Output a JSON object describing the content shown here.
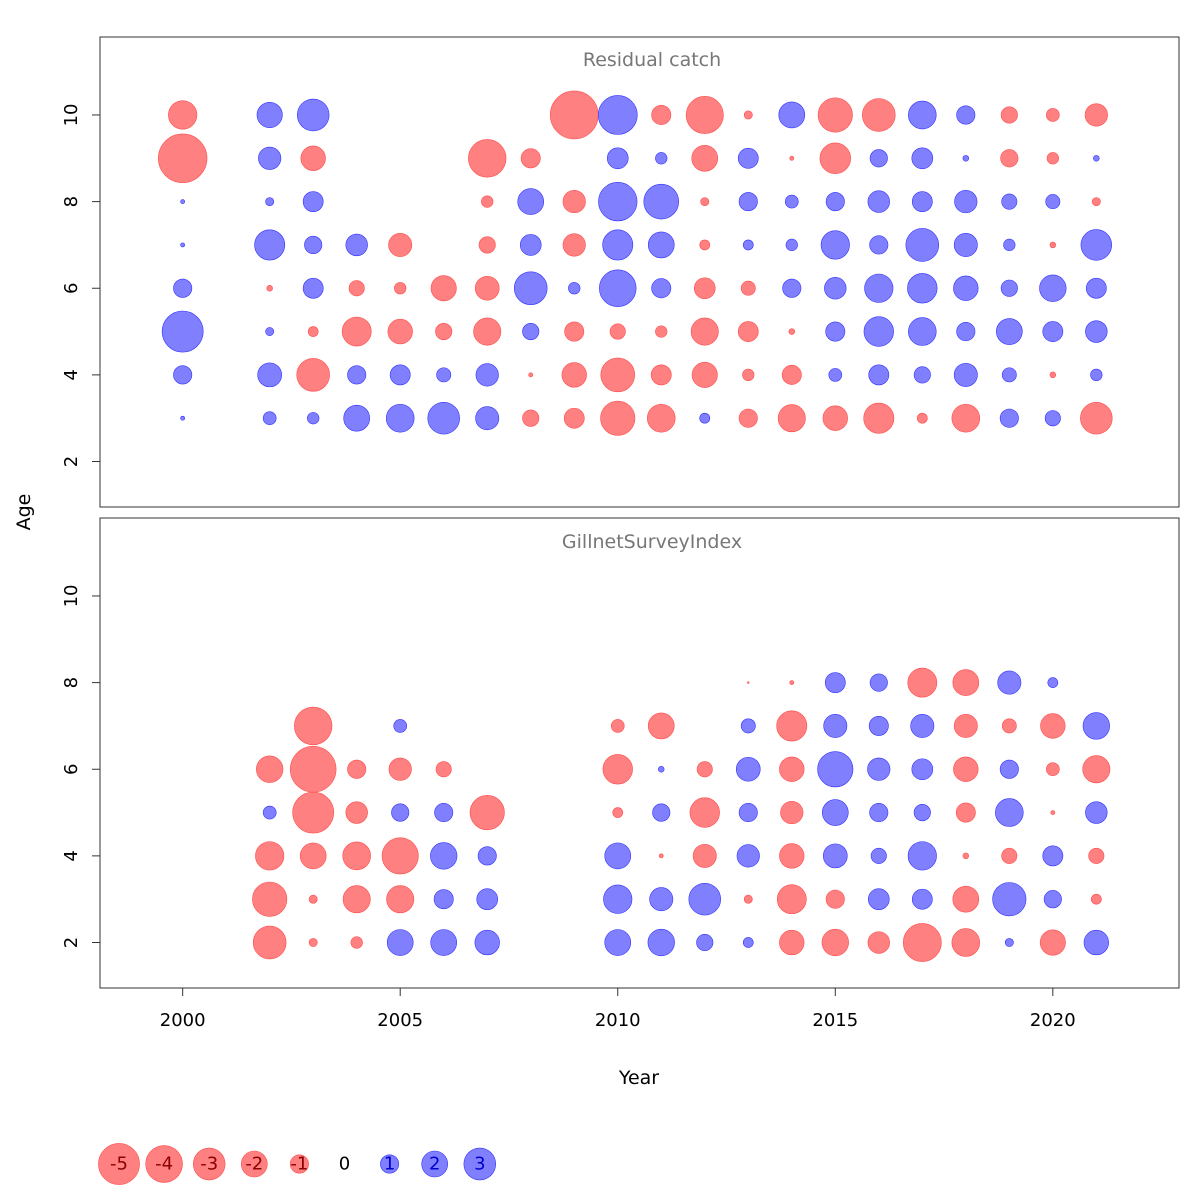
{
  "colors": {
    "positive_fill": "#8080FF",
    "negative_fill": "#FF8080",
    "positive_text": "#0000CC",
    "negative_text": "#8B0000",
    "panel_title": "#777777"
  },
  "chart_data": {
    "type": "bubble-residuals",
    "xlabel": "Year",
    "ylabel": "Age",
    "x_ticks": [
      2000,
      2005,
      2010,
      2015,
      2020
    ],
    "y_ticks": [
      2,
      4,
      6,
      8,
      10
    ],
    "xlim": [
      1998.1,
      2022.9
    ],
    "ylim": [
      0.95,
      11.8
    ],
    "size_scale": "bubble area proportional to absolute residual",
    "legend": {
      "values": [
        -5,
        -4,
        -3,
        -2,
        -1,
        0,
        1,
        2,
        3
      ],
      "labels": [
        "-5",
        "-4",
        "-3",
        "-2",
        "-1",
        "0",
        "1",
        "2",
        "3"
      ]
    },
    "panels": [
      {
        "title": "Residual catch",
        "years": [
          2000,
          2002,
          2003,
          2004,
          2005,
          2006,
          2007,
          2008,
          2009,
          2010,
          2011,
          2012,
          2013,
          2014,
          2015,
          2016,
          2017,
          2018,
          2019,
          2020,
          2021
        ],
        "ages": [
          3,
          4,
          5,
          6,
          7,
          8,
          9,
          10
        ],
        "residuals": {
          "3": [
            0.05,
            0.5,
            0.4,
            2.0,
            2.3,
            3.0,
            1.6,
            -0.8,
            -1.2,
            -3.5,
            -2.3,
            0.3,
            -1.0,
            -2.2,
            -1.8,
            -2.7,
            -0.3,
            -2.3,
            1.0,
            0.7,
            -3.0
          ],
          "4": [
            1.0,
            1.7,
            -3.2,
            1.0,
            1.2,
            0.6,
            1.5,
            -0.05,
            -1.8,
            -3.4,
            -1.2,
            -1.9,
            -0.4,
            -1.1,
            0.5,
            1.2,
            0.8,
            1.6,
            0.6,
            -0.1,
            0.4
          ],
          "5": [
            5.0,
            0.2,
            -0.3,
            -2.5,
            -1.8,
            -0.8,
            -2.2,
            0.8,
            -1.1,
            -0.7,
            -0.4,
            -2.2,
            -1.2,
            -0.1,
            1.1,
            2.6,
            2.3,
            1.0,
            2.0,
            1.2,
            1.4
          ],
          "6": [
            1.0,
            -0.1,
            1.2,
            -0.7,
            -0.4,
            -1.9,
            -1.7,
            3.2,
            0.4,
            4.0,
            1.1,
            -1.3,
            -0.6,
            1.0,
            1.4,
            2.4,
            2.6,
            1.8,
            0.8,
            2.1,
            1.2
          ],
          "7": [
            0.05,
            2.7,
            0.9,
            1.4,
            -1.6,
            null,
            -0.8,
            1.3,
            -1.5,
            2.7,
            2.0,
            -0.3,
            0.3,
            0.4,
            2.4,
            1.0,
            3.2,
            1.6,
            0.4,
            -0.1,
            2.8
          ],
          "8": [
            0.05,
            0.2,
            1.2,
            null,
            null,
            null,
            -0.4,
            2.0,
            -1.5,
            4.4,
            3.6,
            -0.2,
            1.0,
            0.5,
            1.0,
            1.4,
            1.2,
            1.5,
            0.7,
            0.6,
            -0.2
          ],
          "9": [
            -7.0,
            1.5,
            -1.8,
            null,
            null,
            null,
            -4.2,
            -1.1,
            null,
            1.3,
            0.4,
            -2.0,
            1.2,
            -0.05,
            -2.8,
            0.9,
            1.3,
            0.1,
            -0.9,
            -0.4,
            0.1
          ],
          "10": [
            -2.4,
            1.9,
            3.0,
            null,
            null,
            null,
            null,
            null,
            -6.8,
            4.5,
            -1.1,
            -4.1,
            -0.2,
            2.0,
            -3.5,
            -3.2,
            2.3,
            1.0,
            -0.8,
            -0.5,
            -1.5
          ]
        }
      },
      {
        "title": "GillnetSurveyIndex",
        "years": [
          2000,
          2002,
          2003,
          2004,
          2005,
          2006,
          2007,
          2008,
          2009,
          2010,
          2011,
          2012,
          2013,
          2014,
          2015,
          2016,
          2017,
          2018,
          2019,
          2020,
          2021
        ],
        "ages": [
          2,
          3,
          4,
          5,
          6,
          7,
          8
        ],
        "residuals": {
          "2": [
            null,
            -3.2,
            -0.2,
            -0.4,
            2.0,
            2.0,
            1.8,
            null,
            null,
            2.0,
            2.1,
            0.8,
            0.3,
            -1.8,
            -2.1,
            -1.4,
            -4.3,
            -2.3,
            0.2,
            -1.9,
            1.8
          ],
          "3": [
            null,
            -3.5,
            -0.2,
            -2.2,
            -2.2,
            1.1,
            1.3,
            null,
            null,
            2.4,
            1.6,
            3.0,
            -0.2,
            -2.5,
            -1.0,
            1.3,
            1.2,
            -2.0,
            3.3,
            0.9,
            -0.3
          ],
          "4": [
            null,
            -2.4,
            -2.0,
            -2.3,
            -3.9,
            2.1,
            1.0,
            null,
            null,
            2.0,
            -0.05,
            -1.6,
            1.5,
            -1.8,
            1.7,
            0.7,
            2.4,
            -0.1,
            -0.7,
            1.2,
            -0.7
          ],
          "5": [
            null,
            0.5,
            -5.0,
            -1.4,
            0.9,
            1.0,
            -3.5,
            null,
            null,
            -0.3,
            0.9,
            -2.6,
            1.0,
            -1.5,
            2.0,
            1.0,
            0.8,
            -1.1,
            2.3,
            -0.05,
            1.4
          ],
          "6": [
            null,
            -2.1,
            -6.2,
            -1.0,
            -1.5,
            -0.7,
            null,
            null,
            null,
            -2.6,
            0.1,
            -0.7,
            1.7,
            -1.8,
            3.7,
            1.5,
            1.3,
            -1.8,
            1.0,
            -0.5,
            -2.2
          ],
          "7": [
            null,
            null,
            -4.2,
            null,
            0.5,
            null,
            null,
            null,
            null,
            -0.5,
            -2.0,
            null,
            0.6,
            -2.7,
            1.6,
            1.1,
            1.6,
            -1.6,
            -0.6,
            -1.8,
            2.1
          ],
          "8": [
            null,
            null,
            null,
            null,
            null,
            null,
            null,
            null,
            null,
            null,
            null,
            null,
            -0.01,
            -0.05,
            1.2,
            0.9,
            -2.5,
            -2.0,
            1.6,
            0.3,
            null
          ]
        }
      }
    ]
  }
}
